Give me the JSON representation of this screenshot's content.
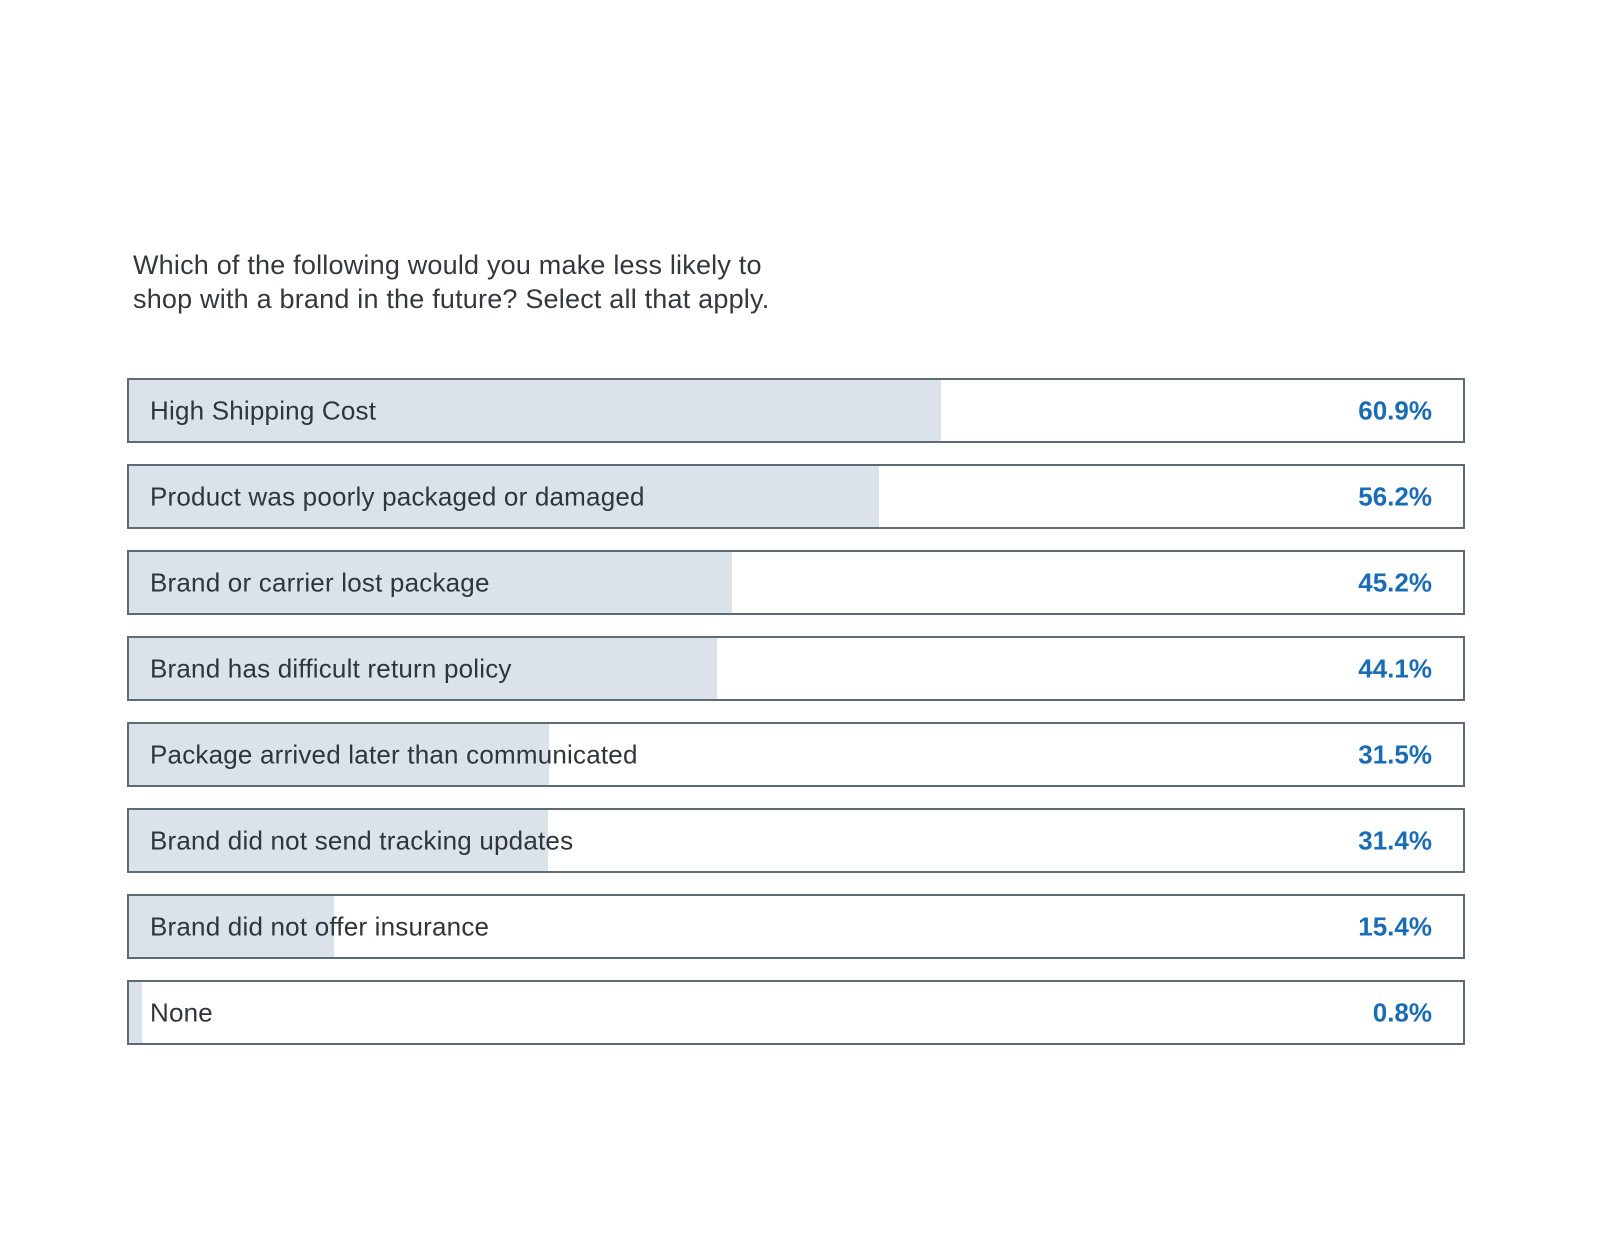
{
  "chart_data": {
    "type": "bar",
    "orientation": "horizontal",
    "title": "Which of the following would you make less likely to shop with a brand in the future? Select all that apply.",
    "title_lines": [
      "Which of the following would you make less likely to",
      "shop with a brand in the future? Select all that apply."
    ],
    "categories": [
      "High Shipping Cost",
      "Product was poorly packaged or damaged",
      "Brand or carrier lost package",
      "Brand has difficult return policy",
      "Package arrived later than communicated",
      "Brand did not send tracking updates",
      "Brand did not offer insurance",
      "None"
    ],
    "values": [
      60.9,
      56.2,
      45.2,
      44.1,
      31.5,
      31.4,
      15.4,
      0.8
    ],
    "value_labels": [
      "60.9%",
      "56.2%",
      "45.2%",
      "44.1%",
      "31.5%",
      "31.4%",
      "15.4%",
      "0.8%"
    ],
    "xlim": [
      0,
      100
    ],
    "grid": false,
    "legend": "none",
    "colors": {
      "bar_fill": "#dbe2e9",
      "bar_border": "#5f6a77",
      "value_text": "#1a6cb5",
      "label_text": "#2f353b",
      "background": "#ffffff"
    }
  }
}
